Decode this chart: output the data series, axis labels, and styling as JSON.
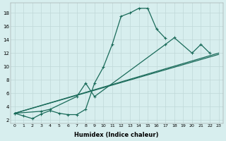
{
  "title": "",
  "xlabel": "Humidex (Indice chaleur)",
  "bg_color": "#d7eeee",
  "grid_color": "#c0d8d8",
  "line_color": "#1a6b5a",
  "xlim": [
    -0.5,
    23.5
  ],
  "ylim": [
    1.5,
    19.5
  ],
  "yticks": [
    2,
    4,
    6,
    8,
    10,
    12,
    14,
    16,
    18
  ],
  "xticks": [
    0,
    1,
    2,
    3,
    4,
    5,
    6,
    7,
    8,
    9,
    10,
    11,
    12,
    13,
    14,
    15,
    16,
    17,
    18,
    19,
    20,
    21,
    22,
    23
  ],
  "curve1_x": [
    0,
    1,
    2,
    3,
    4,
    5,
    6,
    7,
    8,
    9,
    10,
    11,
    12,
    13,
    14,
    15,
    16,
    17
  ],
  "curve1_y": [
    3.0,
    2.6,
    2.2,
    2.9,
    3.4,
    3.0,
    2.8,
    2.8,
    3.6,
    7.5,
    9.9,
    13.3,
    17.5,
    18.0,
    18.7,
    18.7,
    15.6,
    14.2
  ],
  "curve2_x": [
    0,
    3,
    4,
    7,
    8,
    9,
    17,
    18,
    20,
    21,
    22
  ],
  "curve2_y": [
    3.0,
    3.3,
    3.6,
    5.5,
    7.5,
    5.5,
    13.3,
    14.3,
    12.0,
    13.3,
    12.0
  ],
  "line1_x": [
    0,
    23
  ],
  "line1_y": [
    3.0,
    12.0
  ],
  "line2_x": [
    0,
    23
  ],
  "line2_y": [
    3.0,
    11.8
  ]
}
